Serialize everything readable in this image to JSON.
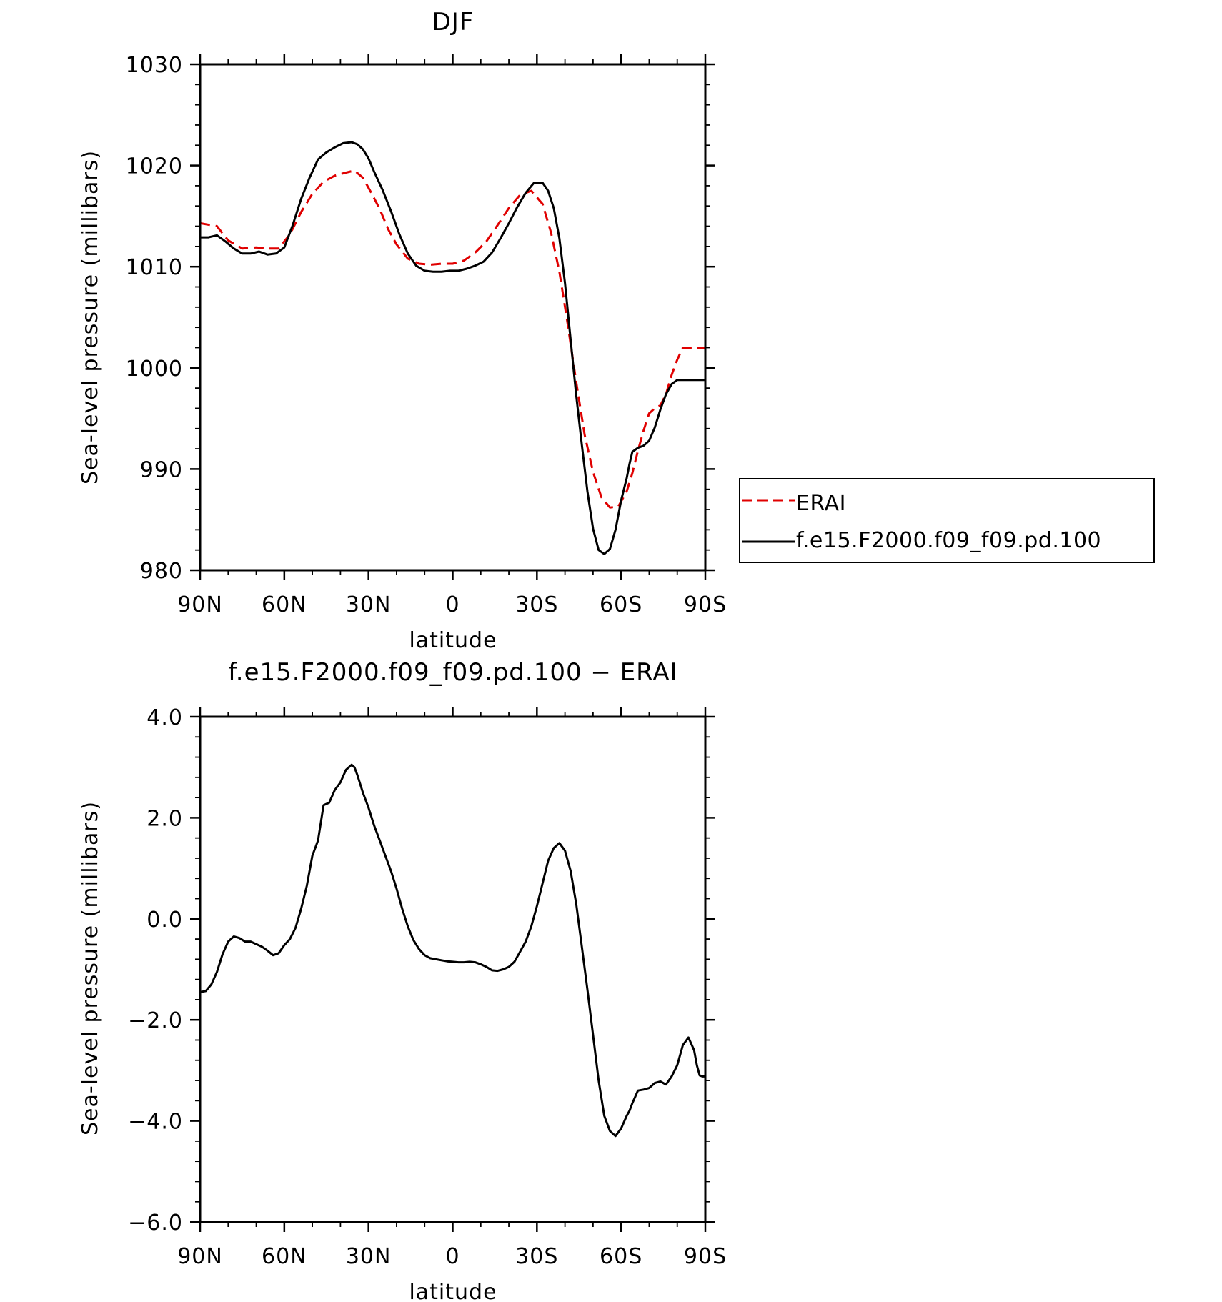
{
  "chart_data": [
    {
      "type": "line",
      "title": "DJF",
      "xlabel": "latitude",
      "ylabel": "Sea-level pressure (millibars)",
      "xlim": [
        90,
        -90
      ],
      "ylim": [
        980,
        1030
      ],
      "xticks": [
        90,
        60,
        30,
        0,
        -30,
        -60,
        -90
      ],
      "xtick_labels": [
        "90N",
        "60N",
        "30N",
        "0",
        "30S",
        "60S",
        "90S"
      ],
      "yticks": [
        980,
        990,
        1000,
        1010,
        1020,
        1030
      ],
      "ytick_labels": [
        "980",
        "990",
        "1000",
        "1010",
        "1020",
        "1030"
      ],
      "legend_position": "right",
      "series": [
        {
          "name": "ERAI",
          "color": "#e00000",
          "style": "dashed",
          "x": [
            90,
            84,
            80,
            75,
            70,
            66,
            62,
            58,
            54,
            50,
            46,
            42,
            38,
            35,
            32,
            29,
            26,
            23,
            20,
            16,
            12,
            8,
            4,
            0,
            -4,
            -8,
            -12,
            -16,
            -20,
            -24,
            -28,
            -32,
            -35,
            -38,
            -41,
            -44,
            -47,
            -50,
            -53,
            -56,
            -59,
            -62,
            -64,
            -66,
            -68,
            -70,
            -72,
            -74,
            -76,
            -78,
            -80,
            -82,
            -84,
            -86,
            -88,
            -90
          ],
          "values": [
            1014.3,
            1014.0,
            1012.6,
            1011.8,
            1011.9,
            1011.8,
            1011.8,
            1013.2,
            1015.4,
            1017.2,
            1018.4,
            1019.0,
            1019.3,
            1019.5,
            1018.8,
            1017.3,
            1015.7,
            1013.7,
            1012.2,
            1010.8,
            1010.3,
            1010.2,
            1010.3,
            1010.3,
            1010.6,
            1011.4,
            1012.5,
            1014.1,
            1015.8,
            1017.1,
            1017.5,
            1016.2,
            1013.4,
            1009.5,
            1004.3,
            998.6,
            993.4,
            989.7,
            987.2,
            986.2,
            986.3,
            987.8,
            989.6,
            991.8,
            993.8,
            995.5,
            996.0,
            996.3,
            997.4,
            999.3,
            1000.8,
            1002.0,
            1002.0,
            1002.0,
            1002.0,
            1002.0
          ]
        },
        {
          "name": "f.e15.F2000.f09_f09.pd.100",
          "color": "#000000",
          "style": "solid",
          "x": [
            90,
            87,
            84,
            81,
            78,
            75,
            72,
            69,
            66,
            63,
            60,
            57,
            54,
            51,
            48,
            45,
            42,
            39,
            36,
            34,
            32,
            30,
            28,
            25,
            22,
            19,
            16,
            13,
            10,
            7,
            4,
            1,
            -2,
            -5,
            -8,
            -11,
            -14,
            -17,
            -20,
            -23,
            -26,
            -29,
            -32,
            -34,
            -36,
            -38,
            -40,
            -42,
            -44,
            -46,
            -48,
            -50,
            -52,
            -54,
            -56,
            -58,
            -60,
            -62,
            -63,
            -64,
            -66,
            -68,
            -70,
            -72,
            -74,
            -76,
            -78,
            -80,
            -82,
            -84,
            -86,
            -88,
            -90
          ],
          "values": [
            1012.9,
            1012.9,
            1013.1,
            1012.5,
            1011.8,
            1011.3,
            1011.3,
            1011.5,
            1011.2,
            1011.3,
            1011.9,
            1014.1,
            1016.7,
            1018.8,
            1020.6,
            1021.3,
            1021.8,
            1022.2,
            1022.3,
            1022.1,
            1021.6,
            1020.7,
            1019.4,
            1017.6,
            1015.5,
            1013.2,
            1011.3,
            1010.1,
            1009.6,
            1009.5,
            1009.5,
            1009.6,
            1009.6,
            1009.8,
            1010.1,
            1010.5,
            1011.4,
            1012.8,
            1014.3,
            1015.9,
            1017.3,
            1018.3,
            1018.3,
            1017.5,
            1015.8,
            1012.8,
            1008.4,
            1002.8,
            997.3,
            992.4,
            987.8,
            984.1,
            982.0,
            981.6,
            982.1,
            984.0,
            986.9,
            989.1,
            990.5,
            991.7,
            992.1,
            992.3,
            992.8,
            994.1,
            995.9,
            997.4,
            998.4,
            998.8,
            998.8,
            998.8,
            998.8,
            998.8,
            998.8
          ]
        }
      ]
    },
    {
      "type": "line",
      "title": "f.e15.F2000.f09_f09.pd.100 − ERAI",
      "xlabel": "latitude",
      "ylabel": "Sea-level pressure (millibars)",
      "xlim": [
        90,
        -90
      ],
      "ylim": [
        -6,
        4
      ],
      "xticks": [
        90,
        60,
        30,
        0,
        -30,
        -60,
        -90
      ],
      "xtick_labels": [
        "90N",
        "60N",
        "30N",
        "0",
        "30S",
        "60S",
        "90S"
      ],
      "yticks": [
        -6,
        -4,
        -2,
        0,
        2,
        4
      ],
      "ytick_labels": [
        "−6.0",
        "−4.0",
        "−2.0",
        "0.0",
        "2.0",
        "4.0"
      ],
      "series": [
        {
          "name": "",
          "color": "#000000",
          "style": "solid",
          "x": [
            90,
            88,
            86,
            84,
            82,
            80,
            78,
            76,
            74,
            72,
            70,
            68,
            66,
            64,
            62,
            60,
            58,
            56,
            54,
            52,
            50,
            48,
            46,
            44,
            42,
            40,
            38,
            36,
            35,
            34,
            32,
            30,
            28,
            26,
            24,
            22,
            20,
            18,
            16,
            14,
            12,
            10,
            8,
            6,
            4,
            2,
            0,
            -2,
            -4,
            -6,
            -8,
            -10,
            -12,
            -14,
            -16,
            -18,
            -20,
            -22,
            -24,
            -26,
            -28,
            -30,
            -32,
            -34,
            -36,
            -38,
            -40,
            -42,
            -44,
            -46,
            -48,
            -50,
            -52,
            -54,
            -56,
            -58,
            -60,
            -62,
            -63,
            -64,
            -66,
            -68,
            -70,
            -72,
            -74,
            -76,
            -78,
            -80,
            -82,
            -84,
            -86,
            -87,
            -88,
            -89,
            -90
          ],
          "values": [
            -1.45,
            -1.43,
            -1.3,
            -1.05,
            -0.7,
            -0.45,
            -0.35,
            -0.38,
            -0.45,
            -0.45,
            -0.5,
            -0.55,
            -0.63,
            -0.72,
            -0.68,
            -0.52,
            -0.4,
            -0.18,
            0.2,
            0.65,
            1.25,
            1.55,
            2.25,
            2.3,
            2.55,
            2.7,
            2.95,
            3.05,
            3.0,
            2.85,
            2.5,
            2.2,
            1.85,
            1.55,
            1.25,
            0.95,
            0.6,
            0.2,
            -0.15,
            -0.42,
            -0.6,
            -0.72,
            -0.78,
            -0.8,
            -0.82,
            -0.84,
            -0.85,
            -0.86,
            -0.86,
            -0.85,
            -0.86,
            -0.9,
            -0.95,
            -1.02,
            -1.03,
            -1.0,
            -0.95,
            -0.85,
            -0.65,
            -0.45,
            -0.15,
            0.25,
            0.7,
            1.15,
            1.4,
            1.5,
            1.35,
            0.95,
            0.3,
            -0.55,
            -1.4,
            -2.3,
            -3.2,
            -3.9,
            -4.2,
            -4.3,
            -4.15,
            -3.9,
            -3.8,
            -3.65,
            -3.4,
            -3.38,
            -3.35,
            -3.25,
            -3.22,
            -3.28,
            -3.12,
            -2.9,
            -2.5,
            -2.35,
            -2.6,
            -2.9,
            -3.1,
            -3.12,
            -3.12
          ]
        }
      ]
    }
  ],
  "legend": {
    "items": [
      {
        "label": "ERAI",
        "color": "#e00000",
        "style": "dashed"
      },
      {
        "label": "f.e15.F2000.f09_f09.pd.100",
        "color": "#000000",
        "style": "solid"
      }
    ]
  }
}
